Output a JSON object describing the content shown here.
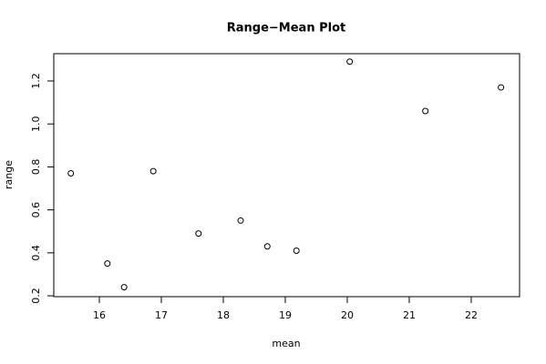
{
  "chart_data": {
    "type": "scatter",
    "title": "Range−Mean Plot",
    "x_label": "mean",
    "y_label": "range",
    "x": [
      15.54,
      16.13,
      16.4,
      16.87,
      17.6,
      18.28,
      18.71,
      19.18,
      20.04,
      21.26,
      22.48
    ],
    "values": [
      0.77,
      0.35,
      0.24,
      0.78,
      0.49,
      0.55,
      0.43,
      0.41,
      1.29,
      1.06,
      1.17
    ],
    "color": "#000000",
    "xlim": [
      15.265,
      22.78
    ],
    "ylim": [
      0.196,
      1.327
    ],
    "xticks": [
      16,
      17,
      18,
      19,
      20,
      21,
      22
    ],
    "yticks": [
      0.2,
      0.4,
      0.6,
      0.8,
      {
        "value": 1,
        "label": "1.0"
      },
      1.2
    ],
    "grid": false
  }
}
